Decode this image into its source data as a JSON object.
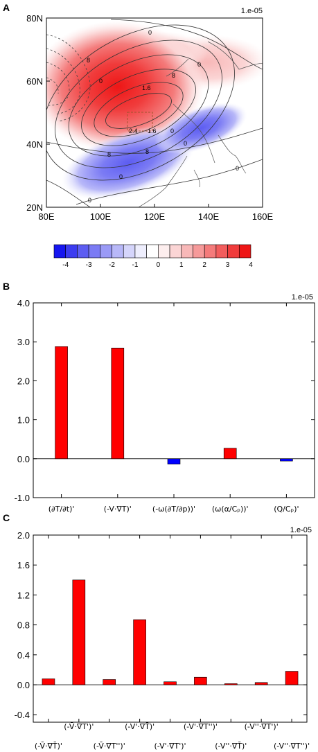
{
  "chart_data": [
    {
      "type": "map",
      "panel": "A",
      "scale_note": "1.e-05",
      "x_ticks": [
        "80E",
        "100E",
        "120E",
        "140E",
        "160E"
      ],
      "y_ticks": [
        "80N",
        "60N",
        "40N",
        "20N"
      ],
      "lon_range": [
        80,
        160
      ],
      "lat_range": [
        20,
        80
      ],
      "box": {
        "lon": [
          110,
          120
        ],
        "lat": [
          45,
          55
        ]
      },
      "contour_labels": [
        "0",
        "8",
        "0",
        "0",
        "8",
        "1.6",
        "2.4",
        "1.6",
        "0",
        "8",
        "8",
        "0",
        "0",
        "0",
        "0"
      ],
      "colorbar": {
        "labels": [
          "-4",
          "-3",
          "-2",
          "-1",
          "0",
          "1",
          "2",
          "3",
          "4"
        ],
        "colors": [
          "#1616f0",
          "#3c3cf0",
          "#5d5df2",
          "#7b7bf4",
          "#9a9af6",
          "#b8b8f8",
          "#d5d5fb",
          "#eeeefd",
          "#ffffff",
          "#fdeeee",
          "#fbd5d5",
          "#f8b8b8",
          "#f69a9a",
          "#f47b7b",
          "#f25d5d",
          "#f03c3c",
          "#ee1616"
        ]
      }
    },
    {
      "type": "bar",
      "panel": "B",
      "scale_note": "1.e-05",
      "categories": [
        "(∂T/∂t)'",
        "(-V·∇T)'",
        "(-ω(∂T/∂p))'",
        "(ω(α/Cₚ))'",
        "(Q/Cₚ)'"
      ],
      "values": [
        2.88,
        2.84,
        -0.14,
        0.27,
        -0.06
      ],
      "ylim": [
        -1.0,
        4.0
      ],
      "yticks": [
        "4.0",
        "3.0",
        "2.0",
        "1.0",
        "0.0",
        "-1.0"
      ],
      "positive_color": "#ff0000",
      "negative_color": "#0000ff"
    },
    {
      "type": "bar",
      "panel": "C",
      "scale_note": "1.e-05",
      "categories": [
        "(-V̄·∇T̄)'",
        "(-V̄·∇T')'",
        "(-V̄·∇T'')'",
        "(-V'·∇T̄)'",
        "(-V'·∇T')'",
        "(-V'·∇T'')'",
        "(-V''·∇T̄)'",
        "(-V''·∇T')'",
        "(-V''·∇T'')'"
      ],
      "values": [
        0.08,
        1.4,
        0.07,
        0.87,
        0.04,
        0.1,
        0.015,
        0.03,
        0.18
      ],
      "ylim": [
        -0.5,
        2.0
      ],
      "yticks": [
        "2.0",
        "1.6",
        "1.2",
        "0.8",
        "0.4",
        "0.0",
        "-0.4"
      ],
      "bar_color": "#ff0000"
    }
  ]
}
